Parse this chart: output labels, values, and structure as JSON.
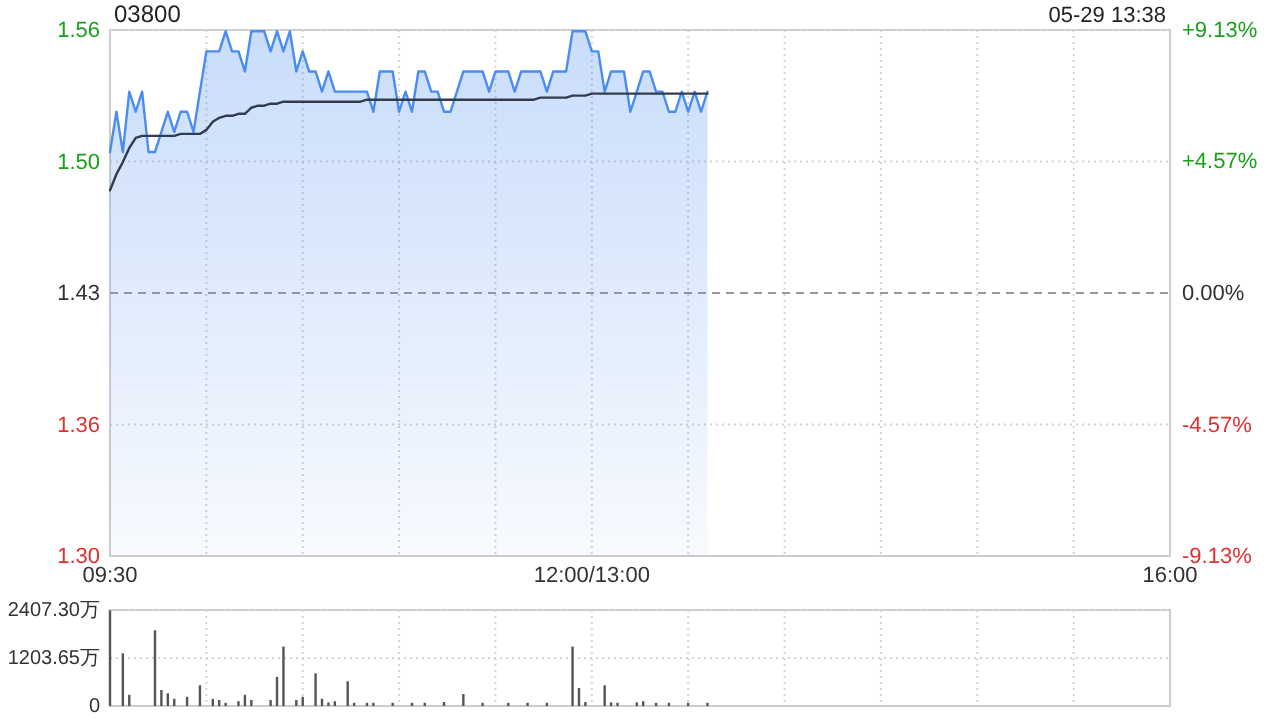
{
  "chart_data": [
    {
      "type": "line",
      "title": "03800",
      "subtitle": "05-29 13:38",
      "categories": [
        "09:30",
        null,
        null,
        null,
        null,
        null,
        null,
        null,
        null,
        null,
        null,
        null,
        null,
        null,
        null,
        null,
        null,
        null,
        null,
        null,
        null,
        null,
        null,
        null,
        null,
        null,
        null,
        null,
        null,
        null,
        null,
        null,
        null,
        null,
        null,
        null,
        null,
        null,
        null,
        null,
        null,
        null,
        null,
        null,
        null,
        null,
        null,
        null,
        null,
        null,
        null,
        null,
        null,
        null,
        null,
        null,
        null,
        null,
        null,
        null,
        null,
        null,
        null,
        null,
        null,
        null,
        null,
        null,
        null,
        null,
        null,
        null,
        null,
        null,
        null,
        "12:00/13:00",
        null,
        null,
        null,
        null,
        null,
        null,
        null,
        null,
        null,
        null,
        null,
        null,
        null,
        null,
        null,
        null,
        null,
        null,
        null,
        null,
        null,
        null,
        null,
        null,
        null,
        null,
        null,
        null,
        null,
        null,
        null,
        null,
        null,
        null,
        null,
        null,
        null,
        null,
        null,
        null,
        null,
        null,
        null,
        null,
        null,
        null,
        null,
        null,
        null,
        null,
        null,
        null,
        null,
        null,
        null,
        null,
        null,
        null,
        null,
        null,
        null,
        null,
        null,
        null,
        null,
        null,
        null,
        null,
        null,
        null,
        null,
        null,
        null,
        null,
        null,
        null,
        null,
        null,
        null,
        null,
        null,
        null,
        null,
        null,
        null,
        null,
        null,
        null,
        null,
        "16:00"
      ],
      "ylim": [
        1.2994,
        1.5606
      ],
      "yticks": [
        {
          "value": 1.2994,
          "label": "1.30"
        },
        {
          "value": 1.3647,
          "label": "1.36"
        },
        {
          "value": 1.43,
          "label": "1.43"
        },
        {
          "value": 1.4953,
          "label": "1.50"
        },
        {
          "value": 1.5606,
          "label": "1.56"
        }
      ],
      "y2lim": [
        -9.13,
        9.13
      ],
      "y2ticks": [
        {
          "value": -9.13,
          "label": "-9.13%"
        },
        {
          "value": -4.57,
          "label": "-4.57%"
        },
        {
          "value": 0,
          "label": "0.00%"
        },
        {
          "value": 4.57,
          "label": "+4.57%"
        },
        {
          "value": 9.13,
          "label": "+9.13%"
        }
      ],
      "grid": true,
      "ref_lines": [
        {
          "axis": "y",
          "value": 1.43,
          "line_style": "dashed",
          "color": "#999999"
        }
      ],
      "series": [
        {
          "type": "area",
          "color": "#4a8cf0",
          "values": [
            1.5,
            1.52,
            1.5,
            1.53,
            1.52,
            1.53,
            1.5,
            1.5,
            1.51,
            1.52,
            1.51,
            1.52,
            1.52,
            1.51,
            1.53,
            1.55,
            1.55,
            1.55,
            1.56,
            1.55,
            1.55,
            1.54,
            1.56,
            1.56,
            1.56,
            1.55,
            1.56,
            1.55,
            1.56,
            1.54,
            1.55,
            1.54,
            1.54,
            1.53,
            1.54,
            1.53,
            1.53,
            1.53,
            1.53,
            1.53,
            1.53,
            1.52,
            1.54,
            1.54,
            1.54,
            1.52,
            1.53,
            1.52,
            1.54,
            1.54,
            1.53,
            1.53,
            1.52,
            1.52,
            1.53,
            1.54,
            1.54,
            1.54,
            1.54,
            1.53,
            1.54,
            1.54,
            1.54,
            1.53,
            1.54,
            1.54,
            1.54,
            1.54,
            1.53,
            1.54,
            1.54,
            1.54,
            1.56,
            1.56,
            1.56,
            1.55,
            1.55,
            1.53,
            1.54,
            1.54,
            1.54,
            1.52,
            1.53,
            1.54,
            1.54,
            1.53,
            1.53,
            1.52,
            1.52,
            1.53,
            1.52,
            1.53,
            1.52,
            1.53,
            null,
            null,
            null,
            null,
            null,
            null,
            null,
            null,
            null,
            null,
            null,
            null,
            null,
            null,
            null,
            null,
            null,
            null,
            null,
            null,
            null,
            null,
            null,
            null,
            null,
            null,
            null,
            null,
            null,
            null,
            null,
            null,
            null,
            null,
            null,
            null,
            null,
            null,
            null,
            null,
            null,
            null,
            null,
            null,
            null,
            null,
            null,
            null,
            null,
            null,
            null,
            null,
            null,
            null,
            null,
            null,
            null,
            null,
            null,
            null,
            null,
            null,
            null,
            null,
            null,
            null,
            null,
            null,
            null,
            null,
            null,
            null
          ]
        },
        {
          "type": "line",
          "color": "#333c4d",
          "values": [
            1.481,
            1.489,
            1.495,
            1.502,
            1.507,
            1.508,
            1.508,
            1.508,
            1.508,
            1.508,
            1.508,
            1.509,
            1.509,
            1.509,
            1.509,
            1.511,
            1.515,
            1.517,
            1.518,
            1.518,
            1.519,
            1.519,
            1.522,
            1.523,
            1.523,
            1.524,
            1.524,
            1.525,
            1.525,
            1.525,
            1.525,
            1.525,
            1.525,
            1.525,
            1.525,
            1.525,
            1.525,
            1.525,
            1.525,
            1.525,
            1.526,
            1.526,
            1.526,
            1.526,
            1.526,
            1.526,
            1.526,
            1.526,
            1.526,
            1.526,
            1.526,
            1.526,
            1.526,
            1.526,
            1.526,
            1.526,
            1.526,
            1.526,
            1.526,
            1.526,
            1.526,
            1.526,
            1.526,
            1.526,
            1.526,
            1.526,
            1.526,
            1.527,
            1.527,
            1.527,
            1.527,
            1.527,
            1.528,
            1.528,
            1.528,
            1.529,
            1.529,
            1.529,
            1.529,
            1.529,
            1.529,
            1.529,
            1.529,
            1.529,
            1.529,
            1.529,
            1.529,
            1.529,
            1.529,
            1.529,
            1.529,
            1.529,
            1.529,
            1.529,
            null,
            null,
            null,
            null,
            null,
            null,
            null,
            null,
            null,
            null,
            null,
            null,
            null,
            null,
            null,
            null,
            null,
            null,
            null,
            null,
            null,
            null,
            null,
            null,
            null,
            null,
            null,
            null,
            null,
            null,
            null,
            null,
            null,
            null,
            null,
            null,
            null,
            null,
            null,
            null,
            null,
            null,
            null,
            null,
            null,
            null,
            null,
            null,
            null,
            null,
            null,
            null,
            null,
            null,
            null,
            null,
            null,
            null,
            null,
            null,
            null,
            null,
            null,
            null,
            null,
            null,
            null,
            null,
            null,
            null,
            null,
            null
          ]
        }
      ]
    },
    {
      "type": "bar",
      "color": "#555555",
      "tick_labels": "y",
      "grid": true,
      "categories": [
        null,
        null,
        null,
        null,
        null,
        null,
        null,
        null,
        null,
        null,
        null,
        null,
        null,
        null,
        null,
        null,
        null,
        null,
        null,
        null,
        null,
        null,
        null,
        null,
        null,
        null,
        null,
        null,
        null,
        null,
        null,
        null,
        null,
        null,
        null,
        null,
        null,
        null,
        null,
        null,
        null,
        null,
        null,
        null,
        null,
        null,
        null,
        null,
        null,
        null,
        null,
        null,
        null,
        null,
        null,
        null,
        null,
        null,
        null,
        null,
        null,
        null,
        null,
        null,
        null,
        null,
        null,
        null,
        null,
        null,
        null,
        null,
        null,
        null,
        null,
        null,
        null,
        null,
        null,
        null,
        null,
        null,
        null,
        null,
        null,
        null,
        null,
        null,
        null,
        null,
        null,
        null,
        null,
        null,
        null,
        null,
        null,
        null,
        null,
        null,
        null,
        null,
        null,
        null,
        null,
        null,
        null,
        null,
        null,
        null,
        null,
        null,
        null,
        null,
        null,
        null,
        null,
        null,
        null,
        null,
        null,
        null,
        null,
        null,
        null,
        null,
        null,
        null,
        null,
        null,
        null,
        null,
        null,
        null,
        null,
        null,
        null,
        null,
        null,
        null,
        null,
        null,
        null,
        null,
        null,
        null,
        null,
        null,
        null,
        null,
        null,
        null,
        null,
        null,
        null,
        null,
        null,
        null,
        null,
        null,
        null,
        null,
        null,
        null,
        null,
        null
      ],
      "ylim": [
        0,
        2407.3
      ],
      "yticks": [
        {
          "value": 0,
          "label": "0"
        },
        {
          "value": 1203.65,
          "label": "1203.65万"
        },
        {
          "value": 2407.3,
          "label": "2407.30万"
        }
      ],
      "values": [
        2400,
        null,
        1320,
        280,
        null,
        null,
        null,
        1900,
        400,
        320,
        180,
        null,
        230,
        null,
        520,
        null,
        180,
        150,
        80,
        null,
        120,
        280,
        150,
        null,
        null,
        150,
        730,
        1490,
        null,
        150,
        230,
        null,
        820,
        180,
        90,
        120,
        null,
        620,
        80,
        null,
        80,
        80,
        null,
        null,
        80,
        null,
        null,
        80,
        null,
        80,
        null,
        null,
        100,
        null,
        null,
        300,
        null,
        null,
        80,
        null,
        null,
        null,
        80,
        null,
        null,
        80,
        null,
        null,
        80,
        null,
        null,
        null,
        1490,
        450,
        100,
        null,
        null,
        520,
        90,
        80,
        null,
        null,
        90,
        120,
        null,
        80,
        null,
        80,
        null,
        null,
        80,
        null,
        null,
        80,
        null,
        null,
        null,
        null,
        null,
        null,
        null,
        null,
        null,
        null,
        null,
        null,
        null,
        null,
        null,
        null,
        null,
        null,
        null,
        null,
        null,
        null,
        null,
        null,
        null,
        null,
        null,
        null,
        null,
        null,
        null,
        null,
        null,
        null,
        null,
        null,
        null,
        null,
        null,
        null,
        null,
        null,
        null,
        null,
        null,
        null,
        null,
        null,
        null,
        null,
        null,
        null,
        null,
        null,
        null,
        null,
        null,
        null,
        null,
        null,
        null,
        null,
        null,
        null,
        null,
        null,
        null,
        null,
        null,
        null,
        null,
        null
      ]
    }
  ]
}
